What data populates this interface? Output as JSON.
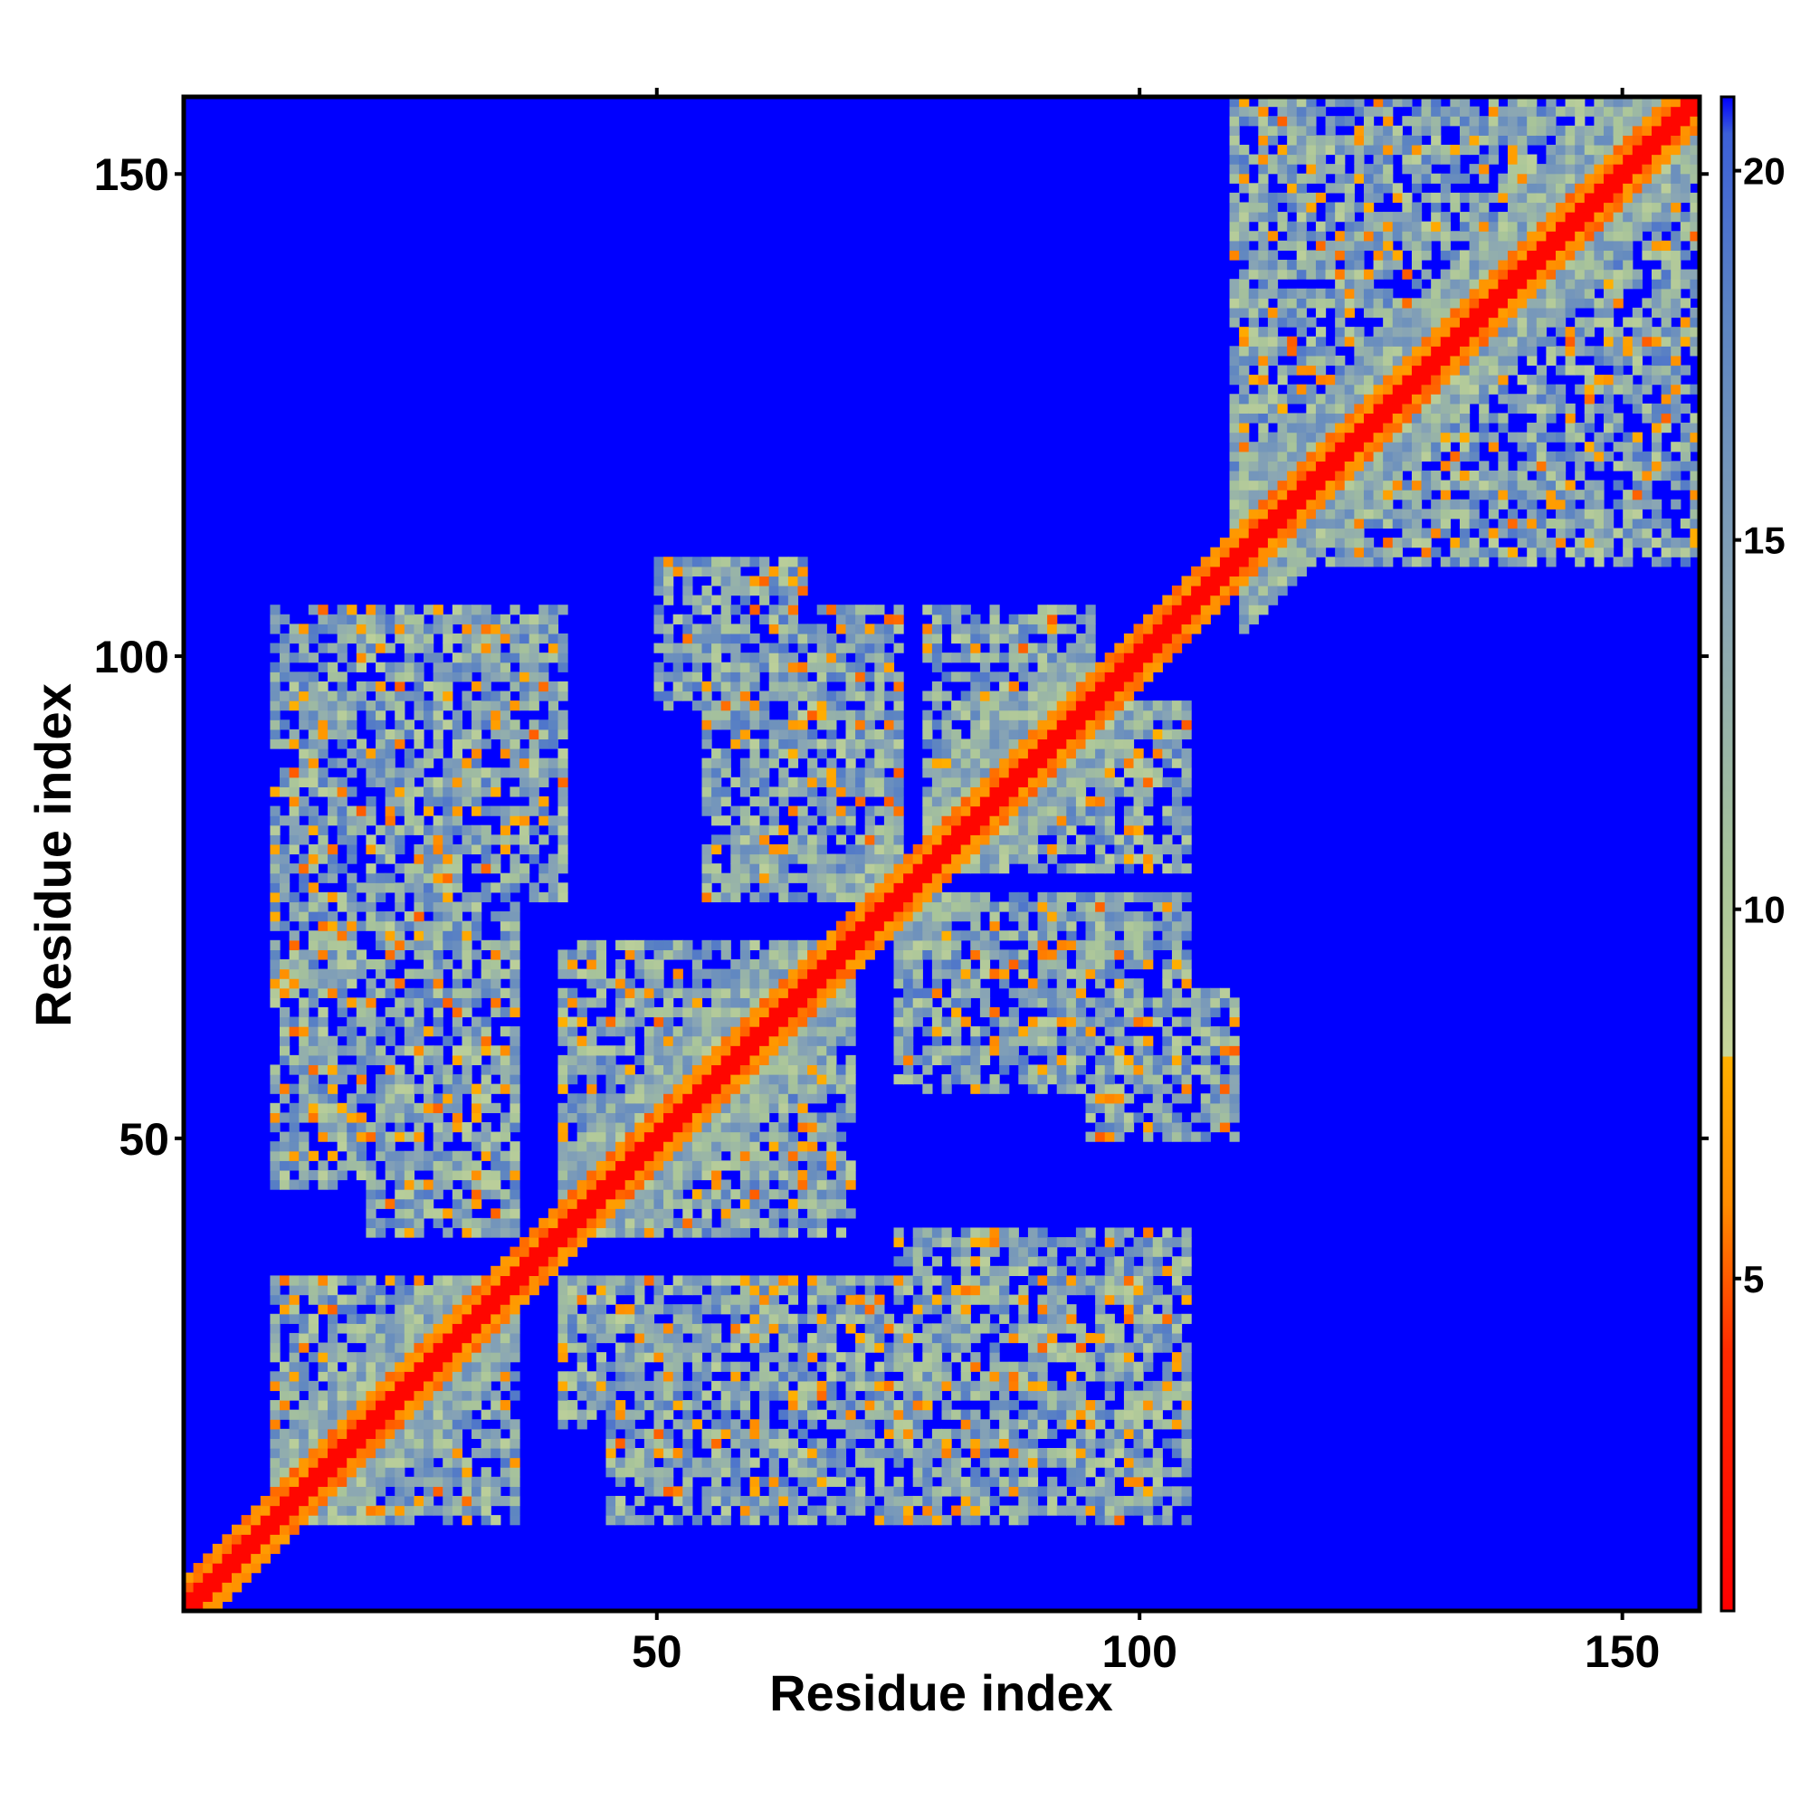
{
  "chart_data": {
    "type": "heatmap",
    "title": "",
    "xlabel": "Residue index",
    "ylabel": "Residue index",
    "xlim": [
      1,
      158
    ],
    "ylim": [
      1,
      158
    ],
    "x_ticks": [
      50,
      100,
      150
    ],
    "x_tick_labels": [
      "50",
      "100",
      "150"
    ],
    "y_ticks": [
      50,
      100,
      150
    ],
    "y_tick_labels": [
      "50",
      "100",
      "150"
    ],
    "matrix_size": 158,
    "colorbar": {
      "range": [
        0.5,
        21
      ],
      "ticks": [
        5,
        10,
        15,
        20
      ],
      "tick_labels": [
        "5",
        "10",
        "15",
        "20"
      ],
      "stops": [
        {
          "value": 0.5,
          "color": "#ff0000"
        },
        {
          "value": 4,
          "color": "#ff2a00"
        },
        {
          "value": 6,
          "color": "#ff8c00"
        },
        {
          "value": 8,
          "color": "#ffb000"
        },
        {
          "value": 8.01,
          "color": "#c8d69a"
        },
        {
          "value": 10.5,
          "color": "#a8c49a"
        },
        {
          "value": 14,
          "color": "#8aa6b4"
        },
        {
          "value": 18,
          "color": "#5c84c2"
        },
        {
          "value": 20.5,
          "color": "#3c60d8"
        },
        {
          "value": 21,
          "color": "#0000ff"
        }
      ]
    },
    "background_color": "#0000ff",
    "diagonal_color": "#ff0000",
    "contact_clusters": [
      {
        "x": [
          10,
          35
        ],
        "y": [
          10,
          35
        ]
      },
      {
        "x": [
          10,
          35
        ],
        "y": [
          45,
          85
        ]
      },
      {
        "x": [
          10,
          35
        ],
        "y": [
          85,
          105
        ]
      },
      {
        "x": [
          40,
          70
        ],
        "y": [
          40,
          70
        ]
      },
      {
        "x": [
          40,
          60
        ],
        "y": [
          20,
          35
        ]
      },
      {
        "x": [
          55,
          75
        ],
        "y": [
          80,
          105
        ]
      },
      {
        "x": [
          75,
          105
        ],
        "y": [
          20,
          40
        ]
      },
      {
        "x": [
          75,
          105
        ],
        "y": [
          55,
          75
        ]
      },
      {
        "x": [
          78,
          95
        ],
        "y": [
          80,
          105
        ]
      },
      {
        "x": [
          95,
          110
        ],
        "y": [
          50,
          65
        ]
      },
      {
        "x": [
          110,
          160
        ],
        "y": [
          110,
          160
        ]
      }
    ]
  }
}
